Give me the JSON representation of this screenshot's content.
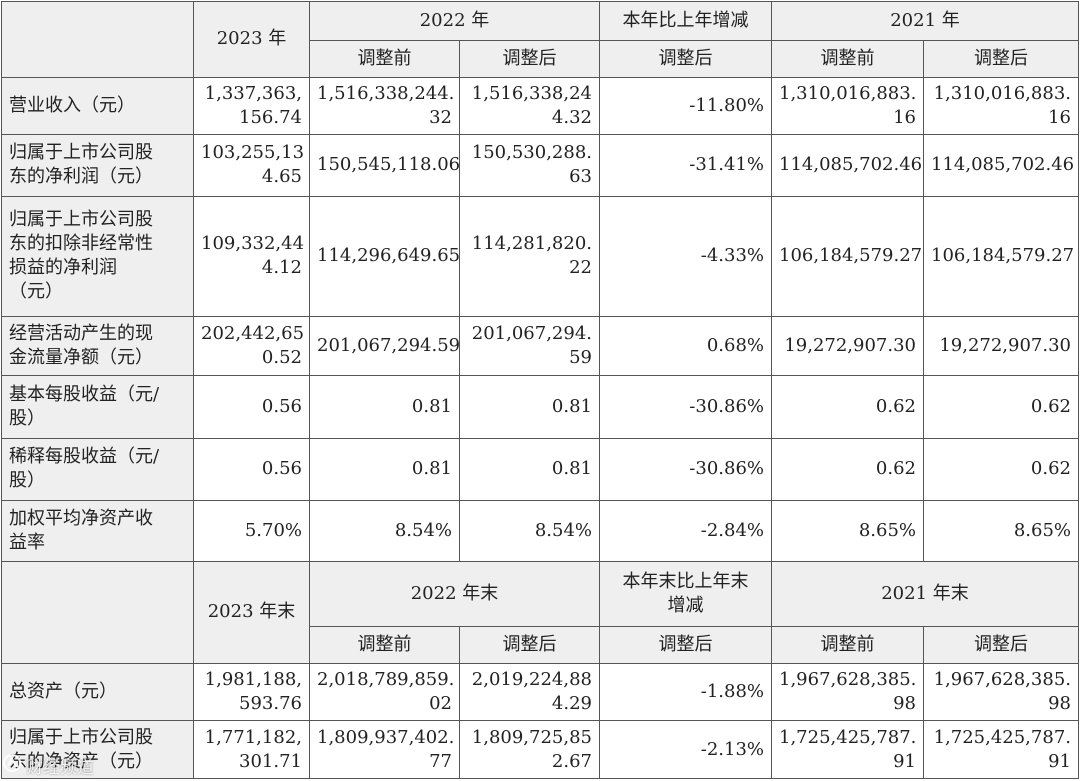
{
  "table": {
    "header1": {
      "col_2023": "2023 年",
      "col_2022": "2022 年",
      "col_change": "本年比上年增减",
      "col_2021": "2021 年",
      "before": "调整前",
      "after": "调整后",
      "change_after": "调整后"
    },
    "rows1": [
      {
        "label": "营业收入（元）",
        "v2023": "1,337,363,\n156.74",
        "v2022_before": "1,516,338,244.\n32",
        "v2022_after": "1,516,338,24\n4.32",
        "change": "-11.80%",
        "v2021_before": "1,310,016,883.\n16",
        "v2021_after": "1,310,016,883.\n16"
      },
      {
        "label": "归属于上市公司股\n东的净利润（元）",
        "v2023": "103,255,13\n4.65",
        "v2022_before": "150,545,118.06",
        "v2022_after": "150,530,288.\n63",
        "change": "-31.41%",
        "v2021_before": "114,085,702.46",
        "v2021_after": "114,085,702.46"
      },
      {
        "label": "归属于上市公司股\n东的扣除非经常性\n损益的净利润\n（元）",
        "v2023": "109,332,44\n4.12",
        "v2022_before": "114,296,649.65",
        "v2022_after": "114,281,820.\n22",
        "change": "-4.33%",
        "v2021_before": "106,184,579.27",
        "v2021_after": "106,184,579.27"
      },
      {
        "label": "经营活动产生的现\n金流量净额（元）",
        "v2023": "202,442,65\n0.52",
        "v2022_before": "201,067,294.59",
        "v2022_after": "201,067,294.\n59",
        "change": "0.68%",
        "v2021_before": "19,272,907.30",
        "v2021_after": "19,272,907.30"
      },
      {
        "label": "基本每股收益（元/\n股）",
        "v2023": "0.56",
        "v2022_before": "0.81",
        "v2022_after": "0.81",
        "change": "-30.86%",
        "v2021_before": "0.62",
        "v2021_after": "0.62"
      },
      {
        "label": "稀释每股收益（元/\n股）",
        "v2023": "0.56",
        "v2022_before": "0.81",
        "v2022_after": "0.81",
        "change": "-30.86%",
        "v2021_before": "0.62",
        "v2021_after": "0.62"
      },
      {
        "label": "加权平均净资产收\n益率",
        "v2023": "5.70%",
        "v2022_before": "8.54%",
        "v2022_after": "8.54%",
        "change": "-2.84%",
        "v2021_before": "8.65%",
        "v2021_after": "8.65%"
      }
    ],
    "header2": {
      "col_2023": "2023 年末",
      "col_2022": "2022 年末",
      "col_change": "本年末比上年末\n增减",
      "col_2021": "2021 年末",
      "before": "调整前",
      "after": "调整后",
      "change_after": "调整后"
    },
    "rows2": [
      {
        "label": "总资产（元）",
        "v2023": "1,981,188,\n593.76",
        "v2022_before": "2,018,789,859.\n02",
        "v2022_after": "2,019,224,88\n4.29",
        "change": "-1.88%",
        "v2021_before": "1,967,628,385.\n98",
        "v2021_after": "1,967,628,385.\n98"
      },
      {
        "label": "归属于上市公司股\n东的净资产（元）",
        "v2023": "1,771,182,\n301.71",
        "v2022_before": "1,809,937,402.\n77",
        "v2022_after": "1,809,725,85\n2.67",
        "change": "-2.13%",
        "v2021_before": "1,725,425,787.\n91",
        "v2021_after": "1,725,425,787.\n91"
      }
    ]
  },
  "watermark": {
    "icon": "logo-icon",
    "text": "财经频道"
  }
}
